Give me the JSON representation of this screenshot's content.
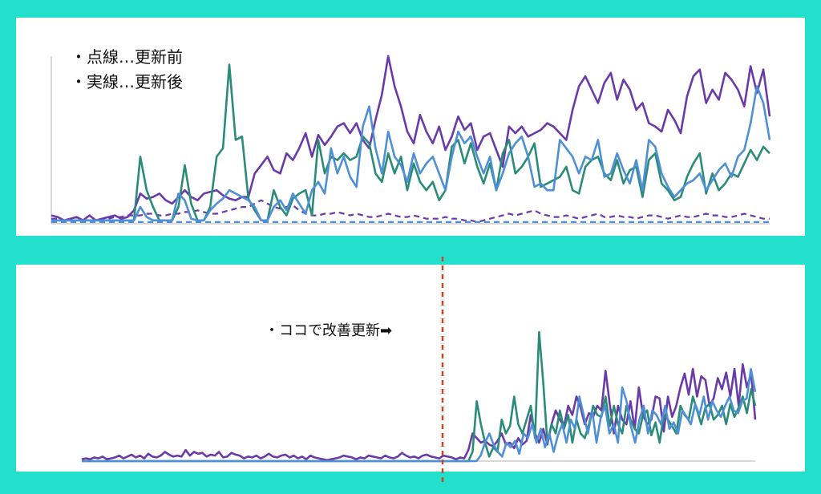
{
  "legend": {
    "items": [
      "・点線…更新前",
      "・実線…更新後"
    ]
  },
  "annotation": {
    "text": "・ココで改善更新➡"
  },
  "colors": {
    "background": "#22e0cc",
    "panel": "#ffffff",
    "purple": "#6a3aa8",
    "green": "#2a8c78",
    "blue": "#4e8fd6",
    "marker": "#c8442a",
    "axis": "#b0b0b0"
  },
  "chart_data": [
    {
      "type": "line",
      "xlim": [
        0,
        100
      ],
      "ylim": [
        0,
        100
      ],
      "series": [
        {
          "key": "purple_solid",
          "color": "#6a3aa8",
          "style": "solid",
          "values": [
            5,
            4,
            2,
            3,
            4,
            2,
            5,
            2,
            3,
            4,
            5,
            3,
            4,
            8,
            18,
            15,
            16,
            18,
            14,
            12,
            16,
            20,
            16,
            14,
            18,
            19,
            20,
            17,
            15,
            14,
            16,
            16,
            30,
            35,
            40,
            32,
            30,
            42,
            38,
            45,
            54,
            40,
            53,
            47,
            52,
            58,
            60,
            54,
            60,
            50,
            45,
            62,
            77,
            100,
            82,
            70,
            55,
            48,
            65,
            55,
            48,
            58,
            44,
            52,
            64,
            56,
            60,
            44,
            52,
            54,
            44,
            34,
            58,
            54,
            58,
            52,
            54,
            56,
            60,
            58,
            54,
            50,
            68,
            82,
            88,
            80,
            72,
            84,
            90,
            74,
            86,
            80,
            68,
            72,
            60,
            58,
            55,
            68,
            62,
            54,
            76,
            88,
            92,
            72,
            80,
            74,
            90,
            86,
            80,
            70,
            94,
            78,
            92,
            64
          ]
        },
        {
          "key": "green_solid",
          "color": "#2a8c78",
          "style": "solid",
          "values": [
            2,
            2,
            2,
            2,
            2,
            2,
            2,
            2,
            2,
            2,
            2,
            2,
            2,
            2,
            40,
            20,
            10,
            2,
            2,
            2,
            10,
            35,
            12,
            2,
            2,
            10,
            40,
            45,
            95,
            50,
            52,
            15,
            8,
            2,
            2,
            20,
            10,
            5,
            15,
            18,
            20,
            5,
            50,
            30,
            40,
            38,
            42,
            38,
            40,
            52,
            48,
            30,
            25,
            42,
            30,
            40,
            20,
            36,
            25,
            20,
            25,
            14,
            20,
            46,
            50,
            36,
            48,
            34,
            24,
            36,
            20,
            42,
            50,
            30,
            34,
            40,
            48,
            22,
            24,
            26,
            28,
            34,
            20,
            18,
            34,
            38,
            40,
            30,
            26,
            38,
            24,
            32,
            34,
            16,
            38,
            42,
            24,
            20,
            14,
            16,
            28,
            36,
            42,
            18,
            30,
            20,
            24,
            30,
            28,
            36,
            44,
            38,
            46,
            42
          ]
        },
        {
          "key": "blue_solid",
          "color": "#4e8fd6",
          "style": "solid",
          "values": [
            2,
            2,
            2,
            2,
            2,
            2,
            2,
            2,
            2,
            2,
            2,
            2,
            2,
            2,
            10,
            4,
            2,
            2,
            2,
            2,
            18,
            14,
            3,
            2,
            2,
            8,
            12,
            15,
            20,
            18,
            16,
            14,
            10,
            2,
            2,
            10,
            14,
            8,
            18,
            12,
            6,
            20,
            25,
            18,
            45,
            30,
            40,
            28,
            22,
            58,
            70,
            45,
            30,
            55,
            40,
            35,
            25,
            42,
            30,
            36,
            40,
            30,
            20,
            40,
            55,
            48,
            52,
            40,
            30,
            40,
            20,
            30,
            42,
            48,
            52,
            40,
            22,
            24,
            20,
            20,
            50,
            45,
            40,
            30,
            40,
            38,
            50,
            28,
            30,
            42,
            32,
            24,
            38,
            20,
            50,
            46,
            30,
            22,
            16,
            20,
            24,
            26,
            30,
            20,
            26,
            32,
            36,
            28,
            40,
            44,
            60,
            82,
            72,
            50
          ]
        },
        {
          "key": "purple_dotted",
          "color": "#6a3aa8",
          "style": "dashed",
          "values": [
            3,
            3,
            2,
            2,
            2,
            2,
            2,
            2,
            3,
            3,
            4,
            4,
            5,
            5,
            5,
            6,
            6,
            5,
            5,
            6,
            6,
            7,
            7,
            8,
            7,
            6,
            6,
            7,
            8,
            9,
            10,
            10,
            12,
            14,
            12,
            10,
            9,
            10,
            11,
            8,
            6,
            5,
            5,
            6,
            6,
            7,
            6,
            5,
            6,
            5,
            4,
            4,
            5,
            6,
            5,
            4,
            4,
            5,
            4,
            3,
            3,
            3,
            4,
            3,
            3,
            2,
            2,
            1,
            2,
            3,
            4,
            5,
            6,
            5,
            6,
            7,
            8,
            6,
            5,
            4,
            4,
            5,
            4,
            3,
            4,
            5,
            6,
            4,
            4,
            5,
            4,
            4,
            3,
            4,
            5,
            5,
            4,
            3,
            4,
            5,
            4,
            4,
            5,
            6,
            5,
            5,
            4,
            4,
            5,
            6,
            5,
            4,
            3,
            3
          ]
        },
        {
          "key": "blue_dotted",
          "color": "#4e8fd6",
          "style": "dashed",
          "values": [
            1,
            1,
            1,
            1,
            1,
            1,
            1,
            1,
            1,
            1,
            1,
            1,
            1,
            1,
            1,
            1,
            1,
            1,
            1,
            1,
            1,
            1,
            1,
            1,
            1,
            1,
            1,
            1,
            1,
            1,
            1,
            1,
            1,
            1,
            1,
            1,
            1,
            1,
            1,
            1,
            1,
            1,
            1,
            1,
            1,
            1,
            1,
            1,
            1,
            1,
            1,
            1,
            1,
            1,
            1,
            1,
            1,
            1,
            1,
            1,
            1,
            1,
            1,
            1,
            1,
            1,
            1,
            1,
            1,
            1,
            1,
            1,
            1,
            1,
            1,
            1,
            1,
            1,
            1,
            1,
            1,
            1,
            1,
            1,
            1,
            1,
            1,
            1,
            1,
            1,
            1,
            1,
            1,
            1,
            1,
            1,
            1,
            1,
            1,
            1,
            1,
            1,
            1,
            1,
            1,
            1,
            1,
            1,
            1,
            1,
            1,
            1,
            1,
            1
          ]
        }
      ]
    },
    {
      "type": "line",
      "xlim": [
        0,
        100
      ],
      "ylim": [
        0,
        100
      ],
      "change_point": 53,
      "series": [
        {
          "key": "purple",
          "color": "#6a3aa8",
          "style": "solid",
          "values": [
            2,
            3,
            2,
            4,
            3,
            5,
            2,
            3,
            4,
            6,
            3,
            5,
            7,
            4,
            6,
            3,
            8,
            5,
            4,
            6,
            10,
            7,
            5,
            6,
            5,
            12,
            6,
            10,
            8,
            9,
            5,
            7,
            6,
            10,
            4,
            5,
            9,
            7,
            6,
            3,
            5,
            4,
            6,
            3,
            5,
            8,
            5,
            4,
            6,
            7,
            4,
            6,
            3,
            5,
            2,
            6,
            4,
            3,
            2,
            1,
            2,
            3,
            4,
            6,
            5,
            4,
            2,
            4,
            3,
            6,
            5,
            4,
            3,
            6,
            4,
            3,
            5,
            9,
            6,
            4,
            5,
            3,
            6,
            7,
            5,
            4,
            3,
            6,
            5,
            4,
            2,
            4,
            3,
            12,
            30,
            25,
            20,
            22,
            18,
            16,
            22,
            30,
            18,
            20,
            14,
            25,
            18,
            22,
            50,
            30,
            20,
            35,
            18,
            40,
            55,
            45,
            38,
            60,
            50,
            70,
            58,
            40,
            52,
            48,
            60,
            55,
            98,
            62,
            30,
            60,
            45,
            40,
            65,
            35,
            80,
            50,
            40,
            45,
            70,
            68,
            32,
            70,
            48,
            60,
            80,
            95,
            72,
            100,
            70,
            92,
            88,
            60,
            68,
            90,
            78,
            96,
            70,
            100,
            60,
            105,
            80,
            95,
            45
          ]
        },
        {
          "key": "green",
          "color": "#2a8c78",
          "style": "solid",
          "values": [
            0,
            0,
            0,
            0,
            0,
            0,
            0,
            0,
            0,
            0,
            0,
            0,
            0,
            0,
            0,
            0,
            0,
            0,
            0,
            0,
            0,
            0,
            0,
            0,
            0,
            0,
            0,
            0,
            0,
            0,
            0,
            0,
            0,
            0,
            0,
            0,
            0,
            0,
            0,
            0,
            0,
            0,
            0,
            0,
            0,
            0,
            0,
            0,
            0,
            0,
            0,
            0,
            0,
            0,
            0,
            0,
            0,
            0,
            0,
            0,
            0,
            0,
            0,
            0,
            0,
            0,
            0,
            0,
            0,
            0,
            0,
            0,
            0,
            0,
            0,
            0,
            0,
            0,
            0,
            0,
            0,
            0,
            0,
            0,
            0,
            0,
            0,
            0,
            0,
            0,
            0,
            0,
            0,
            0,
            10,
            65,
            40,
            20,
            5,
            15,
            10,
            45,
            30,
            38,
            70,
            40,
            30,
            45,
            60,
            25,
            140,
            85,
            20,
            40,
            30,
            55,
            35,
            50,
            20,
            45,
            30,
            25,
            40,
            60,
            50,
            48,
            70,
            38,
            60,
            40,
            30,
            60,
            45,
            35,
            30,
            50,
            55,
            28,
            42,
            20,
            50,
            45,
            38,
            30,
            60,
            50,
            45,
            70,
            55,
            40,
            58,
            62,
            45,
            50,
            60,
            40,
            62,
            48,
            58,
            70,
            52,
            78,
            60
          ]
        },
        {
          "key": "blue",
          "color": "#4e8fd6",
          "style": "solid",
          "values": [
            0,
            0,
            0,
            0,
            0,
            0,
            0,
            0,
            0,
            0,
            0,
            0,
            0,
            0,
            0,
            0,
            0,
            0,
            0,
            0,
            0,
            0,
            0,
            0,
            0,
            0,
            0,
            0,
            0,
            0,
            0,
            0,
            0,
            0,
            0,
            0,
            0,
            0,
            0,
            0,
            0,
            0,
            0,
            0,
            0,
            0,
            0,
            0,
            0,
            0,
            0,
            0,
            0,
            0,
            0,
            0,
            0,
            0,
            0,
            0,
            0,
            0,
            0,
            0,
            0,
            0,
            0,
            0,
            0,
            0,
            0,
            0,
            0,
            0,
            0,
            0,
            0,
            0,
            0,
            0,
            0,
            0,
            0,
            0,
            0,
            0,
            0,
            0,
            0,
            0,
            0,
            0,
            0,
            6,
            20,
            30,
            18,
            10,
            5,
            20,
            15,
            22,
            8,
            30,
            25,
            40,
            20,
            35,
            15,
            30,
            10,
            28,
            40,
            20,
            45,
            35,
            70,
            50,
            30,
            55,
            20,
            48,
            60,
            30,
            40,
            20,
            80,
            65,
            38,
            20,
            45,
            60,
            30,
            55,
            50,
            40,
            60,
            35,
            42,
            30,
            55,
            48,
            40,
            62,
            50,
            70,
            45,
            65,
            55,
            48,
            60,
            70,
            55,
            52,
            65,
            68,
            100,
            75
          ]
        }
      ]
    }
  ]
}
